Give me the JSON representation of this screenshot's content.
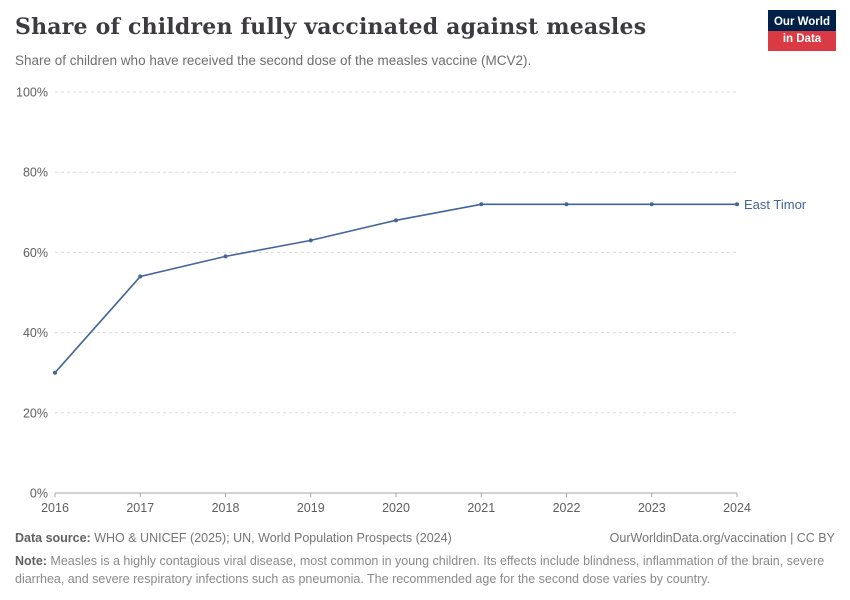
{
  "header": {
    "title": "Share of children fully vaccinated against measles",
    "subtitle": "Share of children who have received the second dose of the measles vaccine (MCV2).",
    "logo": {
      "line1": "Our World",
      "line2": "in Data"
    }
  },
  "chart_data": {
    "type": "line",
    "title": "Share of children fully vaccinated against measles",
    "x": [
      2016,
      2017,
      2018,
      2019,
      2020,
      2021,
      2022,
      2023,
      2024
    ],
    "series": [
      {
        "name": "East Timor",
        "values": [
          30,
          54,
          59,
          63,
          68,
          72,
          72,
          72,
          72
        ],
        "color": "#44659b"
      }
    ],
    "xlabel": "",
    "ylabel": "",
    "ylim": [
      0,
      100
    ],
    "yticks": [
      0,
      20,
      40,
      60,
      80,
      100
    ],
    "ytick_suffix": "%",
    "grid": "horizontal-dashed",
    "legend_position": "end-of-line-label"
  },
  "footer": {
    "datasource_label": "Data source:",
    "datasource_text": " WHO & UNICEF (2025); UN, World Population Prospects (2024)",
    "link_text": "OurWorldinData.org/vaccination | CC BY",
    "note_label": "Note:",
    "note_text": " Measles is a highly contagious viral disease, most common in young children. Its effects include blindness, inflammation of the brain, severe diarrhea, and severe respiratory infections such as pneumonia. The recommended age for the second dose varies by country."
  }
}
